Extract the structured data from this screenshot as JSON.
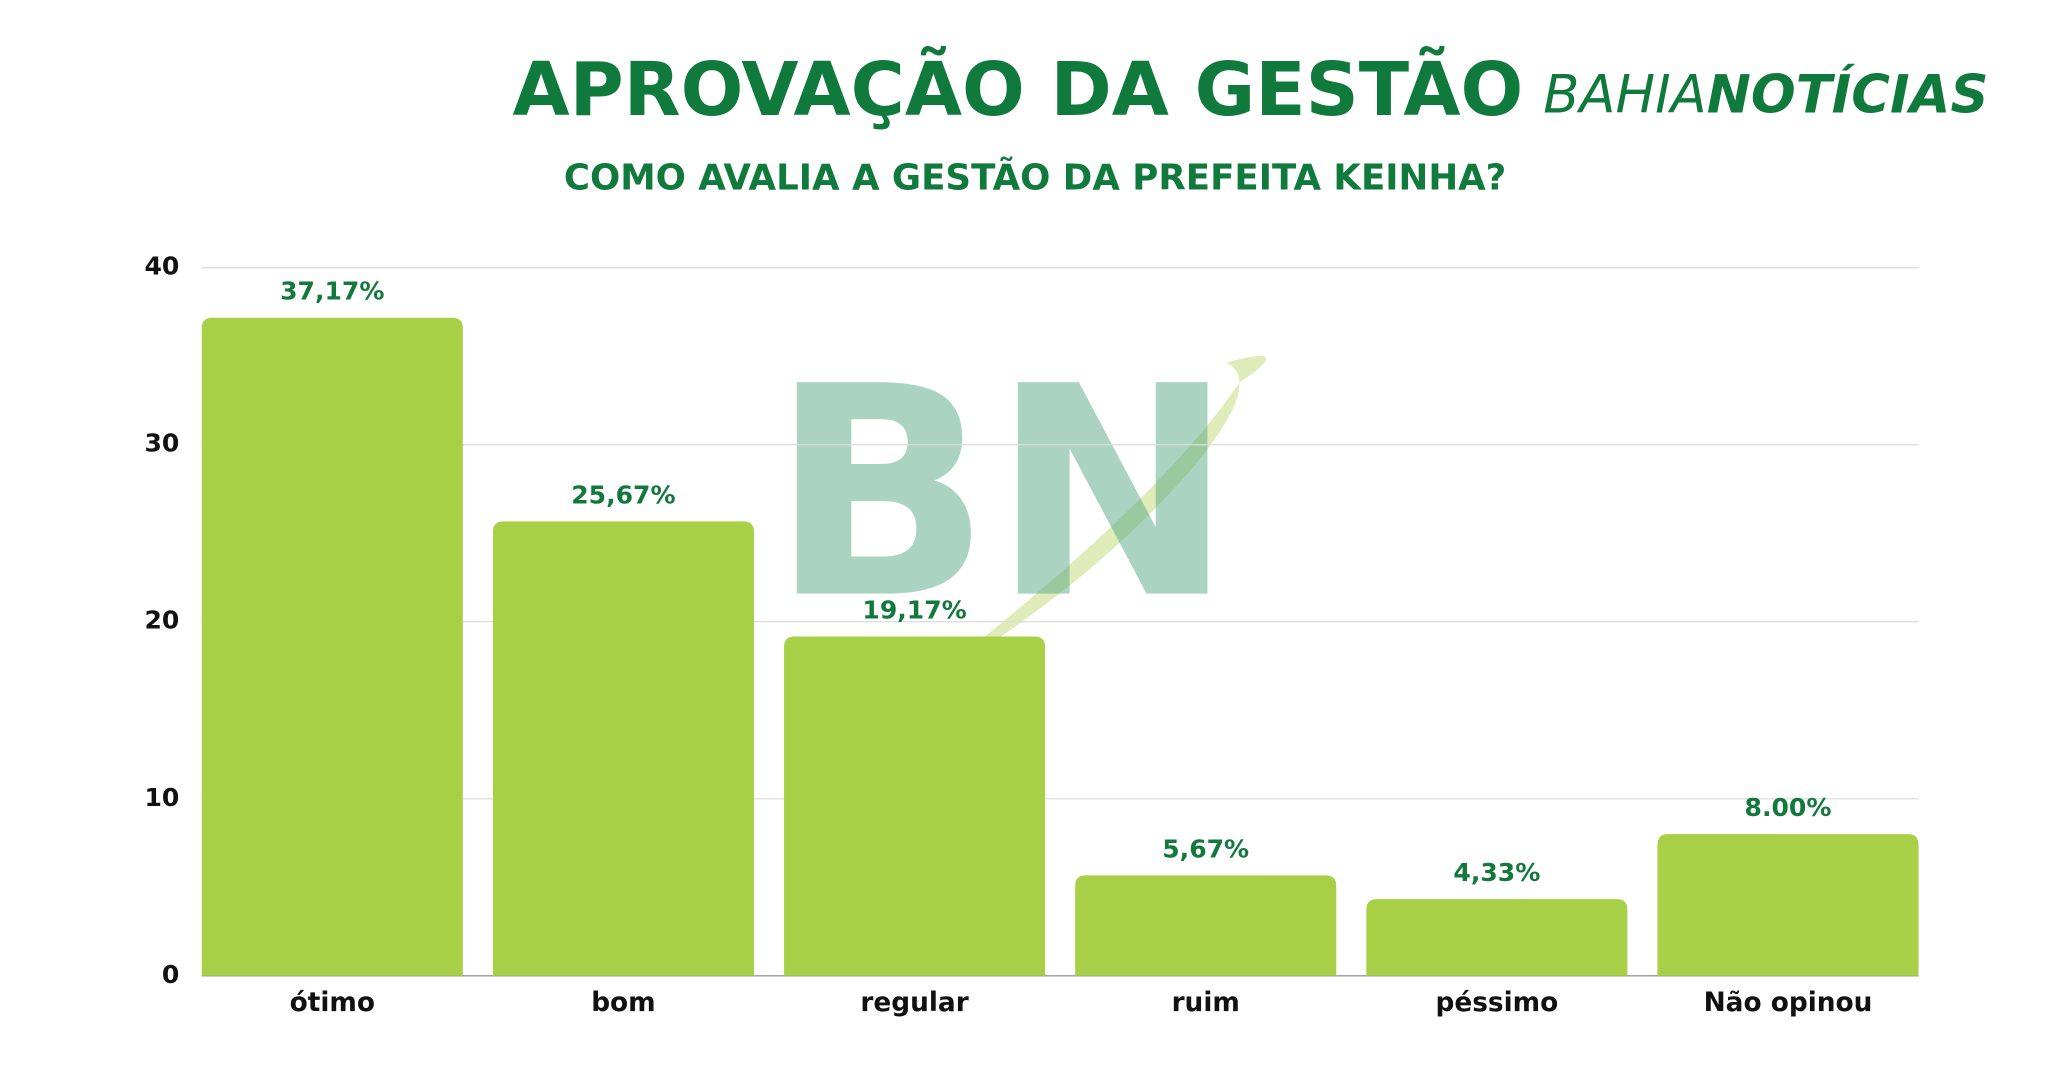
{
  "chart_data": {
    "type": "bar",
    "title": "APROVAÇÃO DA GESTÃO",
    "subtitle": "COMO AVALIA A GESTÃO DA PREFEITA KEINHA?",
    "brand": {
      "light": "BAHIA",
      "bold": "NOTÍCIAS"
    },
    "watermark": "BN",
    "categories": [
      "ótimo",
      "bom",
      "regular",
      "ruim",
      "péssimo",
      "Não opinou"
    ],
    "values": [
      37.17,
      25.67,
      19.17,
      5.67,
      4.33,
      8.0
    ],
    "value_labels": [
      "37,17%",
      "25,67%",
      "19,17%",
      "5,67%",
      "4,33%",
      "8.00%"
    ],
    "color": "#a8d046",
    "ylim": [
      0,
      40
    ],
    "yticks": [
      0,
      10,
      20,
      30,
      40
    ],
    "grid": true
  }
}
